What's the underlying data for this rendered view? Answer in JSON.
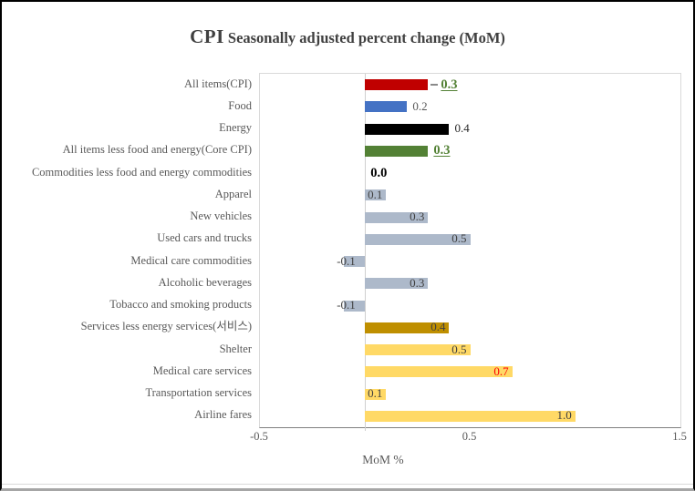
{
  "title": {
    "prefix": "CPI",
    "rest": " Seasonally adjusted percent change (MoM)"
  },
  "chart_data": {
    "type": "bar",
    "orientation": "horizontal",
    "xlabel": "MoM %",
    "xlim": [
      -0.5,
      1.5
    ],
    "grid": "zero-line-only",
    "x_ticks": [
      {
        "value": -0.5,
        "label": "-0.5"
      },
      {
        "value": 0.5,
        "label": "0.5"
      },
      {
        "value": 1.5,
        "label": "1.5"
      }
    ],
    "items": [
      {
        "label": "All items(CPI)",
        "value": 0.3,
        "value_label": "0.3",
        "bar_color": "#C00000",
        "label_color": "#538135",
        "bold": true,
        "underline": true,
        "label_pos": "outside",
        "leader_dash": true
      },
      {
        "label": "Food",
        "value": 0.2,
        "value_label": "0.2",
        "bar_color": "#4472C4",
        "label_color": "#595959",
        "bold": false,
        "underline": false,
        "label_pos": "outside",
        "leader_dash": false
      },
      {
        "label": "Energy",
        "value": 0.4,
        "value_label": "0.4",
        "bar_color": "#000000",
        "label_color": "#262626",
        "bold": false,
        "underline": false,
        "label_pos": "outside",
        "leader_dash": false
      },
      {
        "label": "All items less food and energy(Core CPI)",
        "value": 0.3,
        "value_label": "0.3",
        "bar_color": "#538135",
        "label_color": "#538135",
        "bold": true,
        "underline": true,
        "label_pos": "outside",
        "leader_dash": false
      },
      {
        "label": "Commodities less food and energy commodities",
        "value": 0.0,
        "value_label": "0.0",
        "bar_color": null,
        "label_color": "#000000",
        "bold": true,
        "underline": false,
        "label_pos": "outside",
        "leader_dash": false
      },
      {
        "label": "Apparel",
        "value": 0.1,
        "value_label": "0.1",
        "bar_color": "#ADB9CA",
        "label_color": "#404040",
        "bold": false,
        "underline": false,
        "label_pos": "inside",
        "leader_dash": false
      },
      {
        "label": "New vehicles",
        "value": 0.3,
        "value_label": "0.3",
        "bar_color": "#ADB9CA",
        "label_color": "#404040",
        "bold": false,
        "underline": false,
        "label_pos": "inside",
        "leader_dash": false
      },
      {
        "label": "Used cars and trucks",
        "value": 0.5,
        "value_label": "0.5",
        "bar_color": "#ADB9CA",
        "label_color": "#404040",
        "bold": false,
        "underline": false,
        "label_pos": "inside",
        "leader_dash": false
      },
      {
        "label": "Medical care commodities",
        "value": -0.1,
        "value_label": "-0.1",
        "bar_color": "#ADB9CA",
        "label_color": "#404040",
        "bold": false,
        "underline": false,
        "label_pos": "inside",
        "leader_dash": false
      },
      {
        "label": "Alcoholic beverages",
        "value": 0.3,
        "value_label": "0.3",
        "bar_color": "#ADB9CA",
        "label_color": "#404040",
        "bold": false,
        "underline": false,
        "label_pos": "inside",
        "leader_dash": false
      },
      {
        "label": "Tobacco and smoking products",
        "value": -0.1,
        "value_label": "-0.1",
        "bar_color": "#ADB9CA",
        "label_color": "#404040",
        "bold": false,
        "underline": false,
        "label_pos": "inside",
        "leader_dash": false
      },
      {
        "label": "Services less energy services(서비스)",
        "value": 0.4,
        "value_label": "0.4",
        "bar_color": "#BF8F00",
        "label_color": "#404040",
        "bold": false,
        "underline": false,
        "label_pos": "inside",
        "leader_dash": false
      },
      {
        "label": "Shelter",
        "value": 0.5,
        "value_label": "0.5",
        "bar_color": "#FFD966",
        "label_color": "#404040",
        "bold": false,
        "underline": false,
        "label_pos": "inside",
        "leader_dash": false
      },
      {
        "label": "Medical care services",
        "value": 0.7,
        "value_label": "0.7",
        "bar_color": "#FFD966",
        "label_color": "#FF0000",
        "bold": false,
        "underline": false,
        "label_pos": "inside",
        "leader_dash": false
      },
      {
        "label": "Transportation services",
        "value": 0.1,
        "value_label": "0.1",
        "bar_color": "#FFD966",
        "label_color": "#404040",
        "bold": false,
        "underline": false,
        "label_pos": "inside",
        "leader_dash": false
      },
      {
        "label": "Airline fares",
        "value": 1.0,
        "value_label": "1.0",
        "bar_color": "#FFD966",
        "label_color": "#404040",
        "bold": false,
        "underline": false,
        "label_pos": "inside",
        "leader_dash": false
      }
    ]
  }
}
